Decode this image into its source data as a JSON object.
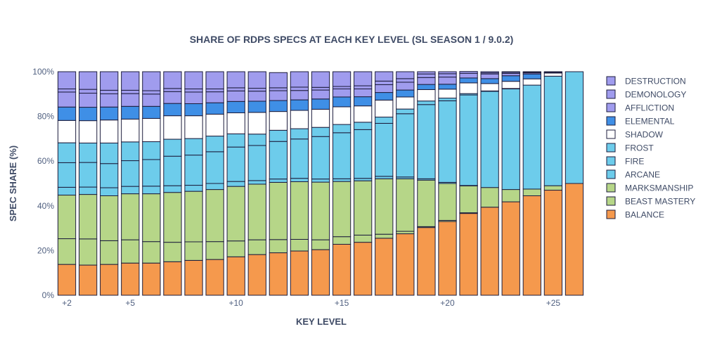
{
  "chart_data": {
    "type": "bar",
    "stacked": true,
    "title": "SHARE OF RDPS SPECS AT EACH KEY LEVEL (SL SEASON 1 / 9.0.2)",
    "xlabel": "KEY LEVEL",
    "ylabel": "SPEC SHARE (%)",
    "categories": [
      2,
      3,
      4,
      5,
      6,
      7,
      8,
      9,
      10,
      11,
      12,
      13,
      14,
      15,
      16,
      17,
      18,
      19,
      20,
      21,
      22,
      23,
      24,
      25,
      26
    ],
    "x_tick_values": [
      2,
      5,
      10,
      15,
      20,
      25
    ],
    "x_tick_labels": [
      "+2",
      "+5",
      "+10",
      "+15",
      "+20",
      "+25"
    ],
    "y_ticks": [
      0,
      20,
      40,
      60,
      80,
      100
    ],
    "y_tick_labels": [
      "0%",
      "20%",
      "40%",
      "60%",
      "80%",
      "100%"
    ],
    "ylim": [
      0,
      100
    ],
    "legend_position": "right",
    "series": [
      {
        "name": "BALANCE",
        "color": "#F5994D",
        "values": [
          13.8,
          13.5,
          13.8,
          14.4,
          14.4,
          15.0,
          15.6,
          16.0,
          17.2,
          18.2,
          19.0,
          19.8,
          20.4,
          22.8,
          23.7,
          25.5,
          27.5,
          30.3,
          33.0,
          36.6,
          39.4,
          41.8,
          44.5,
          47.0,
          50.0
        ]
      },
      {
        "name": "BEAST MASTERY",
        "color": "#B6D688",
        "values": [
          11.5,
          11.7,
          10.6,
          10.4,
          9.6,
          8.7,
          8.3,
          8.0,
          7.1,
          6.6,
          5.9,
          5.2,
          4.4,
          3.4,
          3.2,
          1.8,
          1.1,
          0.4,
          0.5,
          0.3,
          0,
          0,
          0,
          0,
          0
        ]
      },
      {
        "name": "MARKSMANSHIP",
        "color": "#B6D688",
        "values": [
          19.5,
          19.9,
          20.1,
          20.6,
          21.4,
          22.3,
          22.6,
          23.3,
          24.4,
          24.9,
          25.6,
          25.8,
          25.8,
          24.7,
          24.3,
          24.8,
          23.5,
          20.8,
          16.5,
          12.0,
          8.8,
          5.5,
          3.0,
          2.0,
          0
        ]
      },
      {
        "name": "ARCANE",
        "color": "#6DCCEB",
        "values": [
          3.5,
          3.3,
          3.6,
          3.3,
          3.4,
          3.0,
          2.7,
          2.7,
          2.2,
          1.6,
          1.5,
          1.5,
          1.4,
          1.2,
          1.1,
          1.1,
          0.8,
          0.6,
          0.5,
          0.2,
          0,
          0,
          0,
          0,
          0
        ]
      },
      {
        "name": "FIRE",
        "color": "#6DCCEB",
        "values": [
          11.0,
          11.0,
          10.8,
          11.5,
          11.9,
          13.2,
          13.5,
          14.2,
          15.4,
          15.7,
          16.8,
          17.6,
          19.0,
          20.6,
          21.8,
          23.7,
          28.3,
          33.2,
          36.5,
          40.5,
          43.0,
          45.0,
          46.5,
          49.0,
          50.0
        ]
      },
      {
        "name": "FROST",
        "color": "#6DCCEB",
        "values": [
          8.9,
          8.7,
          9.2,
          8.4,
          8.0,
          7.6,
          7.4,
          7.0,
          5.9,
          5.1,
          5.0,
          4.6,
          4.1,
          3.7,
          3.3,
          2.8,
          2.1,
          1.6,
          1.2,
          0.6,
          0.2,
          0.2,
          0,
          0,
          0
        ]
      },
      {
        "name": "SHADOW",
        "color": "#FFFFFF",
        "values": [
          10.0,
          10.0,
          10.3,
          10.2,
          10.4,
          10.5,
          10.2,
          9.8,
          9.4,
          9.7,
          8.4,
          8.2,
          8.1,
          7.9,
          7.3,
          7.6,
          5.4,
          5.1,
          4.0,
          4.8,
          3.3,
          3.2,
          2.8,
          1.4,
          0
        ]
      },
      {
        "name": "ELEMENTAL",
        "color": "#3F8FE6",
        "values": [
          6.0,
          6.0,
          5.8,
          5.7,
          5.4,
          5.5,
          5.4,
          5.1,
          5.1,
          5.0,
          4.9,
          4.7,
          4.6,
          4.4,
          4.1,
          3.4,
          3.1,
          2.3,
          2.2,
          2.2,
          2.2,
          2.5,
          2.2,
          0.2,
          0
        ]
      },
      {
        "name": "AFFLICTION",
        "color": "#A09CEE",
        "values": [
          6.7,
          6.3,
          5.9,
          5.7,
          5.5,
          5.3,
          5.2,
          4.9,
          4.7,
          4.5,
          4.4,
          4.2,
          4.0,
          3.6,
          3.5,
          3.5,
          3.5,
          3.1,
          3.2,
          2.1,
          2.1,
          1.0,
          0.5,
          0.2,
          0
        ]
      },
      {
        "name": "DEMONOLOGY",
        "color": "#A09CEE",
        "values": [
          1.4,
          1.7,
          1.6,
          1.5,
          1.5,
          1.4,
          1.4,
          1.3,
          1.4,
          1.3,
          1.3,
          1.5,
          1.2,
          1.1,
          1.4,
          1.6,
          1.6,
          1.6,
          1.5,
          0.8,
          0.5,
          0.5,
          0.3,
          0.2,
          0
        ]
      },
      {
        "name": "DESTRUCTION",
        "color": "#A09CEE",
        "values": [
          7.7,
          7.9,
          8.3,
          8.3,
          8.5,
          7.5,
          7.7,
          7.7,
          7.2,
          7.4,
          6.8,
          6.9,
          7.0,
          6.6,
          6.3,
          4.2,
          3.1,
          1.0,
          0.9,
          0,
          0.5,
          0.3,
          0.2,
          0,
          0
        ]
      }
    ]
  }
}
